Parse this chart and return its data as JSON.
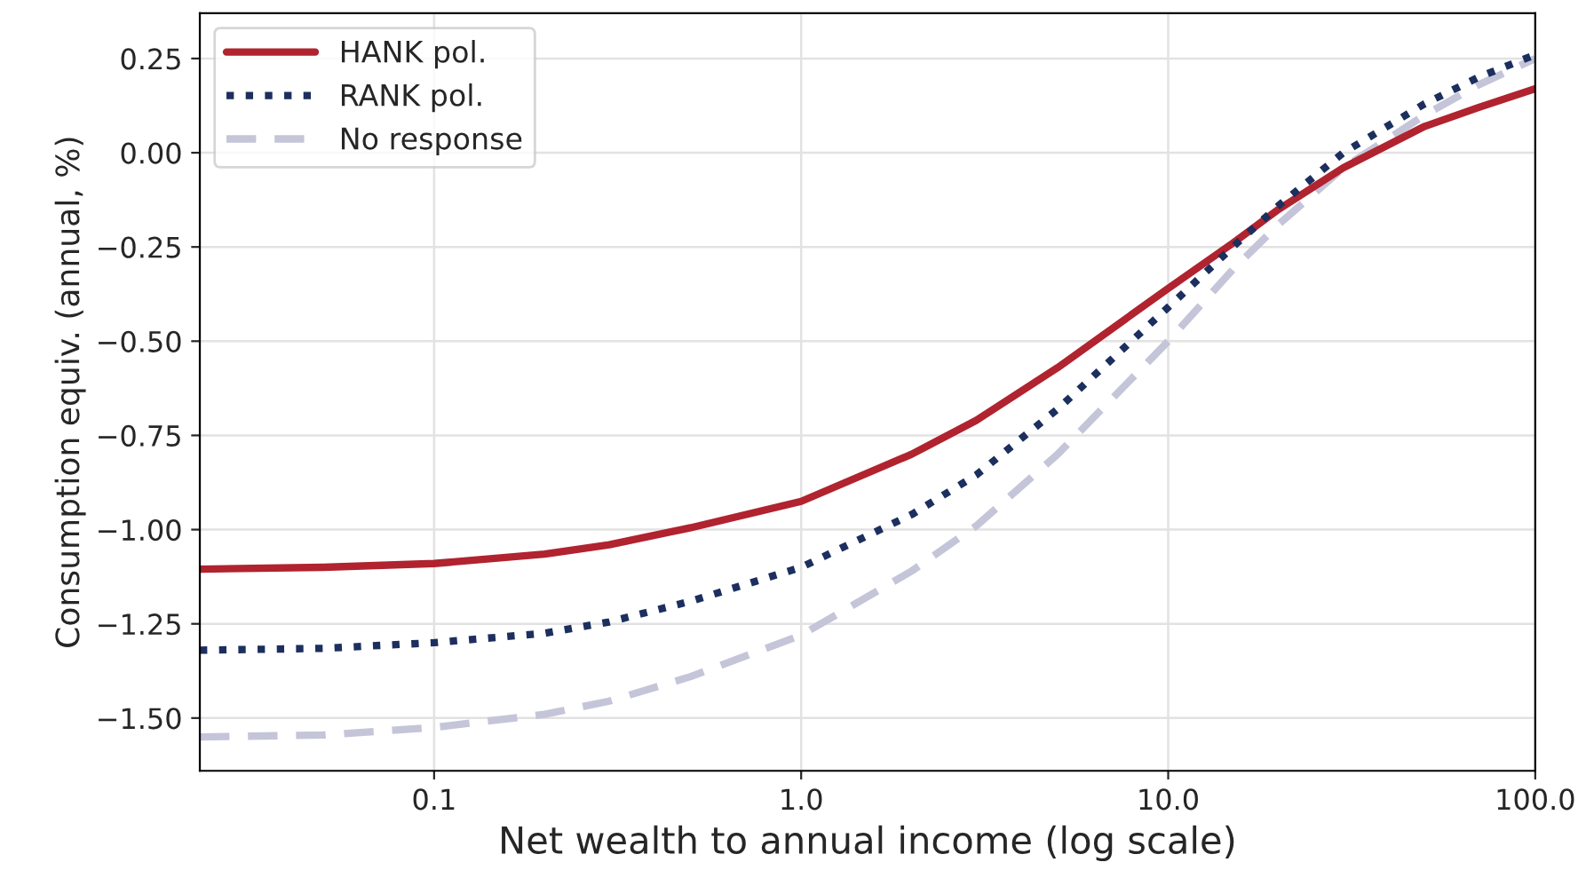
{
  "chart_data": {
    "type": "line",
    "xlabel": "Net wealth to annual income (log scale)",
    "ylabel": "Consumption equiv. (annual, %)",
    "log": "x",
    "x": [
      0.023,
      0.05,
      0.1,
      0.2,
      0.3,
      0.5,
      1,
      2,
      3,
      5,
      10,
      15,
      20,
      30,
      50,
      70,
      100
    ],
    "series": [
      {
        "name": "HANK pol.",
        "color": "#b0232f",
        "line_style": "solid",
        "values": [
          -1.105,
          -1.1,
          -1.09,
          -1.065,
          -1.04,
          -0.995,
          -0.925,
          -0.8,
          -0.71,
          -0.57,
          -0.36,
          -0.24,
          -0.15,
          -0.04,
          0.07,
          0.12,
          0.17
        ]
      },
      {
        "name": "RANK pol.",
        "color": "#1c2f5e",
        "line_style": "dotted",
        "values": [
          -1.32,
          -1.315,
          -1.3,
          -1.275,
          -1.245,
          -1.19,
          -1.1,
          -0.96,
          -0.855,
          -0.68,
          -0.41,
          -0.25,
          -0.14,
          0.0,
          0.13,
          0.2,
          0.26
        ]
      },
      {
        "name": "No response",
        "color": "#c5c5d9",
        "line_style": "dashed",
        "values": [
          -1.55,
          -1.545,
          -1.525,
          -1.49,
          -1.455,
          -1.39,
          -1.28,
          -1.11,
          -0.99,
          -0.8,
          -0.5,
          -0.31,
          -0.19,
          -0.04,
          0.1,
          0.18,
          0.25
        ]
      }
    ],
    "xlim": [
      0.023,
      100
    ],
    "xticks": [
      {
        "value": 0.1,
        "label": "0.1"
      },
      {
        "value": 1,
        "label": "1.0"
      },
      {
        "value": 10,
        "label": "10.0"
      },
      {
        "value": 100,
        "label": "100.0"
      }
    ],
    "ylim": [
      -1.64,
      0.37
    ],
    "yticks": [
      {
        "value": 0.25,
        "label": "0.25"
      },
      {
        "value": 0,
        "label": "0.00"
      },
      {
        "value": -0.25,
        "label": "−0.25"
      },
      {
        "value": -0.5,
        "label": "−0.50"
      },
      {
        "value": -0.75,
        "label": "−0.75"
      },
      {
        "value": -1,
        "label": "−1.00"
      },
      {
        "value": -1.25,
        "label": "−1.25"
      },
      {
        "value": -1.5,
        "label": "−1.50"
      }
    ],
    "grid": true,
    "legend": "top left"
  }
}
